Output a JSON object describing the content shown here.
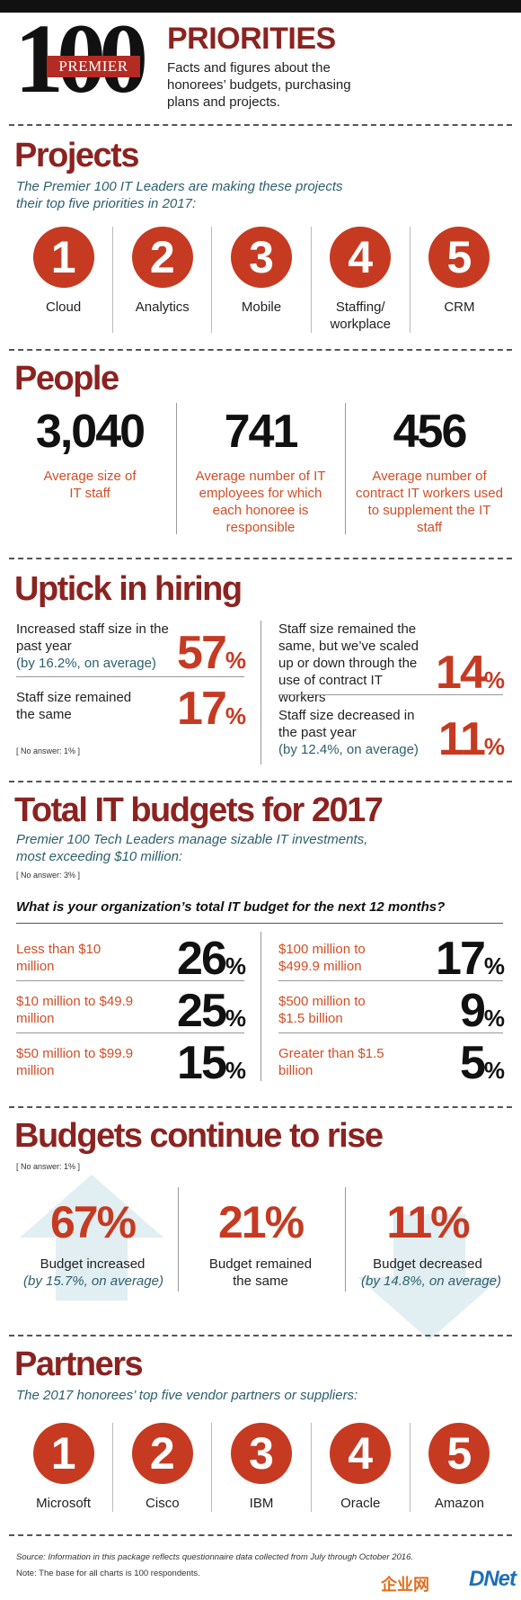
{
  "header": {
    "logo_number": "100",
    "logo_banner": "PREMIER",
    "title": "PRIORITIES",
    "subtitle": "Facts and figures about the honorees’ budgets, purchasing plans and projects."
  },
  "projects": {
    "heading": "Projects",
    "intro": "The Premier 100 IT Leaders are making these projects their top five priorities in 2017:",
    "items": [
      {
        "rank": "1",
        "label": "Cloud"
      },
      {
        "rank": "2",
        "label": "Analytics"
      },
      {
        "rank": "3",
        "label": "Mobile"
      },
      {
        "rank": "4",
        "label": "Staffing/ workplace"
      },
      {
        "rank": "5",
        "label": "CRM"
      }
    ]
  },
  "people": {
    "heading": "People",
    "stats": [
      {
        "value": "3,040",
        "label": "Average size of IT staff"
      },
      {
        "value": "741",
        "label": "Average number of IT employees for which each honoree is responsible"
      },
      {
        "value": "456",
        "label": "Average number of contract IT workers used to supplement the IT staff"
      }
    ]
  },
  "hiring": {
    "heading": "Uptick in hiring",
    "items": [
      {
        "label": "Increased staff size in the past year",
        "sub": "(by 16.2%, on average)",
        "value": "57",
        "unit": "%"
      },
      {
        "label": "Staff size remained the same",
        "sub": "",
        "value": "17",
        "unit": "%"
      },
      {
        "label": "Staff size remained the same, but we’ve scaled up or down through the use of contract IT workers",
        "sub": "",
        "value": "14",
        "unit": "%"
      },
      {
        "label": "Staff size decreased in the past year",
        "sub": "(by 12.4%, on average)",
        "value": "11",
        "unit": "%"
      }
    ],
    "note": "[ No answer: 1% ]"
  },
  "budgets": {
    "heading": "Total IT budgets for 2017",
    "intro": "Premier 100 Tech Leaders manage sizable IT investments, most exceeding $10 million:",
    "note": "[ No answer: 3% ]",
    "question": "What is your organization’s total IT budget for the next 12 months?",
    "items": [
      {
        "label": "Less than $10 million",
        "value": "26",
        "unit": "%"
      },
      {
        "label": "$10 million to $49.9 million",
        "value": "25",
        "unit": "%"
      },
      {
        "label": "$50 million to $99.9 million",
        "value": "15",
        "unit": "%"
      },
      {
        "label": "$100 million to $499.9 million",
        "value": "17",
        "unit": "%"
      },
      {
        "label": "$500 million to $1.5 billion",
        "value": "9",
        "unit": "%"
      },
      {
        "label": "Greater than $1.5 billion",
        "value": "5",
        "unit": "%"
      }
    ]
  },
  "rise": {
    "heading": "Budgets continue to rise",
    "note": "[ No answer: 1% ]",
    "items": [
      {
        "value": "67%",
        "label": "Budget increased",
        "sub": "(by 15.7%, on average)"
      },
      {
        "value": "21%",
        "label": "Budget remained the same",
        "sub": ""
      },
      {
        "value": "11%",
        "label": "Budget decreased",
        "sub": "(by 14.8%, on average)"
      }
    ]
  },
  "partners": {
    "heading": "Partners",
    "intro": "The 2017 honorees’ top five vendor partners or suppliers:",
    "items": [
      {
        "rank": "1",
        "label": "Microsoft"
      },
      {
        "rank": "2",
        "label": "Cisco"
      },
      {
        "rank": "3",
        "label": "IBM"
      },
      {
        "rank": "4",
        "label": "Oracle"
      },
      {
        "rank": "5",
        "label": "Amazon"
      }
    ]
  },
  "footer": {
    "source": "Source: Information in this package reflects questionnaire data collected from July through October 2016.",
    "note": "Note: The base for all charts is 100 respondents.",
    "watermark": "DNet",
    "watermark_cn": "企业网"
  },
  "colors": {
    "heading": "#8b2320",
    "accent": "#c63a22",
    "teal": "#2d5f6e"
  }
}
